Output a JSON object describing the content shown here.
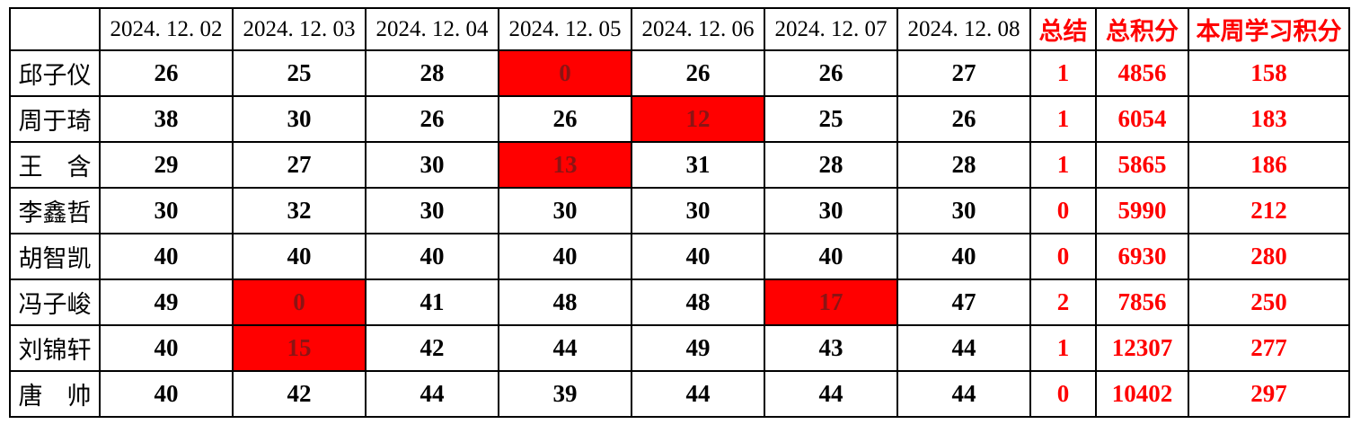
{
  "page": {
    "background": "#ffffff"
  },
  "table": {
    "corner_label": "",
    "date_columns": [
      "2024. 12. 02",
      "2024. 12. 03",
      "2024. 12. 04",
      "2024. 12. 05",
      "2024. 12. 06",
      "2024. 12. 07",
      "2024. 12. 08"
    ],
    "summary_headers": {
      "summary": "总结",
      "total": "总积分",
      "week": "本周学习积分"
    },
    "colors": {
      "accent_red": "#ff0000",
      "highlight_bg": "#ff0000",
      "highlight_text": "#8b1414",
      "grid": "#000000",
      "text": "#000000"
    },
    "rows": [
      {
        "name": "邱子仪",
        "daily": [
          "26",
          "25",
          "28",
          "0",
          "26",
          "26",
          "27"
        ],
        "highlighted_days": [
          3
        ],
        "summary": "1",
        "total": "4856",
        "week": "158"
      },
      {
        "name": "周于琦",
        "daily": [
          "38",
          "30",
          "26",
          "26",
          "12",
          "25",
          "26"
        ],
        "highlighted_days": [
          4
        ],
        "summary": "1",
        "total": "6054",
        "week": "183"
      },
      {
        "name": "王　含",
        "daily": [
          "29",
          "27",
          "30",
          "13",
          "31",
          "28",
          "28"
        ],
        "highlighted_days": [
          3
        ],
        "summary": "1",
        "total": "5865",
        "week": "186"
      },
      {
        "name": "李鑫哲",
        "daily": [
          "30",
          "32",
          "30",
          "30",
          "30",
          "30",
          "30"
        ],
        "highlighted_days": [],
        "summary": "0",
        "total": "5990",
        "week": "212"
      },
      {
        "name": "胡智凯",
        "daily": [
          "40",
          "40",
          "40",
          "40",
          "40",
          "40",
          "40"
        ],
        "highlighted_days": [],
        "summary": "0",
        "total": "6930",
        "week": "280"
      },
      {
        "name": "冯子峻",
        "daily": [
          "49",
          "0",
          "41",
          "48",
          "48",
          "17",
          "47"
        ],
        "highlighted_days": [
          1,
          5
        ],
        "summary": "2",
        "total": "7856",
        "week": "250"
      },
      {
        "name": "刘锦轩",
        "daily": [
          "40",
          "15",
          "42",
          "44",
          "49",
          "43",
          "44"
        ],
        "highlighted_days": [
          1
        ],
        "summary": "1",
        "total": "12307",
        "week": "277"
      },
      {
        "name": "唐　帅",
        "daily": [
          "40",
          "42",
          "44",
          "39",
          "44",
          "44",
          "44"
        ],
        "highlighted_days": [],
        "summary": "0",
        "total": "10402",
        "week": "297"
      }
    ]
  }
}
